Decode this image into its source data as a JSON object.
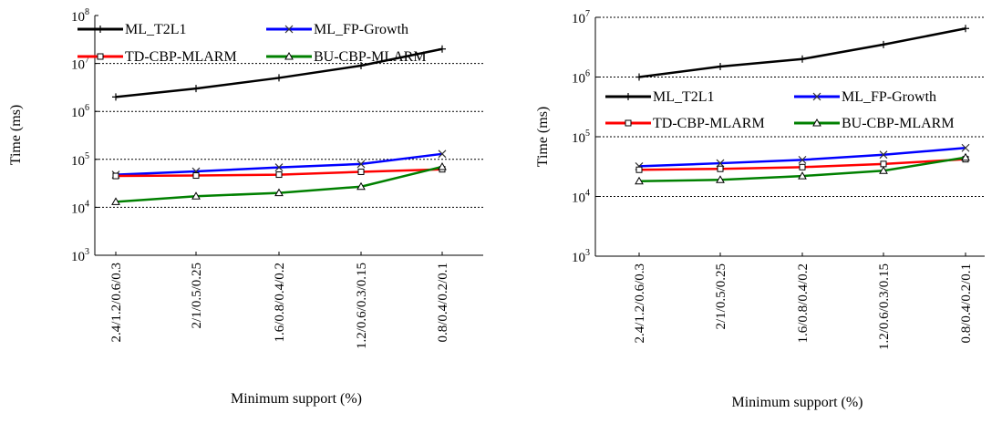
{
  "chart_data": [
    {
      "type": "line",
      "yscale": "log",
      "ylim": [
        1000,
        100000000
      ],
      "ytick_exponents": [
        3,
        4,
        5,
        6,
        7,
        8
      ],
      "ytick_base": "10",
      "grid": "dashed horizontal at 10^4, 10^5, 10^6, 10^7",
      "legend_position": "top",
      "xlabel": "Minimum support (%)",
      "ylabel": "Time (ms)",
      "categories": [
        "2.4/1.2/0.6/0.3",
        "2/1/0.5/0.25",
        "1.6/0.8/0.4/0.2",
        "1.2/0.6/0.3/0.15",
        "0.8/0.4/0.2/0.1"
      ],
      "series": [
        {
          "name": "ML_T2L1",
          "color": "#000000",
          "marker": "plus",
          "values": [
            2000000,
            3000000,
            5000000,
            9000000,
            20000000
          ]
        },
        {
          "name": "ML_FP-Growth",
          "color": "#0000ff",
          "marker": "x",
          "values": [
            48000,
            56000,
            68000,
            80000,
            130000
          ]
        },
        {
          "name": "TD-CBP-MLARM",
          "color": "#ff0000",
          "marker": "square",
          "values": [
            45000,
            46000,
            48000,
            55000,
            62000
          ]
        },
        {
          "name": "BU-CBP-MLARM",
          "color": "#008000",
          "marker": "triangle",
          "values": [
            13000,
            17000,
            20000,
            27000,
            70000
          ]
        }
      ]
    },
    {
      "type": "line",
      "yscale": "log",
      "ylim": [
        1000,
        10000000
      ],
      "ytick_exponents": [
        3,
        4,
        5,
        6,
        7
      ],
      "ytick_base": "10",
      "grid": "dashed horizontal at 10^4, 10^5, 10^6, 10^7",
      "legend_position": "middle",
      "xlabel": "Minimum support (%)",
      "ylabel": "Time (ms)",
      "categories": [
        "2.4/1.2/0.6/0.3",
        "2/1/0.5/0.25",
        "1.6/0.8/0.4/0.2",
        "1.2/0.6/0.3/0.15",
        "0.8/0.4/0.2/0.1"
      ],
      "series": [
        {
          "name": "ML_T2L1",
          "color": "#000000",
          "marker": "plus",
          "values": [
            1000000,
            1500000,
            2000000,
            3500000,
            6500000
          ]
        },
        {
          "name": "ML_FP-Growth",
          "color": "#0000ff",
          "marker": "x",
          "values": [
            32000,
            36000,
            41000,
            50000,
            65000
          ]
        },
        {
          "name": "TD-CBP-MLARM",
          "color": "#ff0000",
          "marker": "square",
          "values": [
            28000,
            29000,
            31000,
            35000,
            42000
          ]
        },
        {
          "name": "BU-CBP-MLARM",
          "color": "#008000",
          "marker": "triangle",
          "values": [
            18000,
            19000,
            22000,
            27000,
            45000
          ]
        }
      ]
    }
  ]
}
